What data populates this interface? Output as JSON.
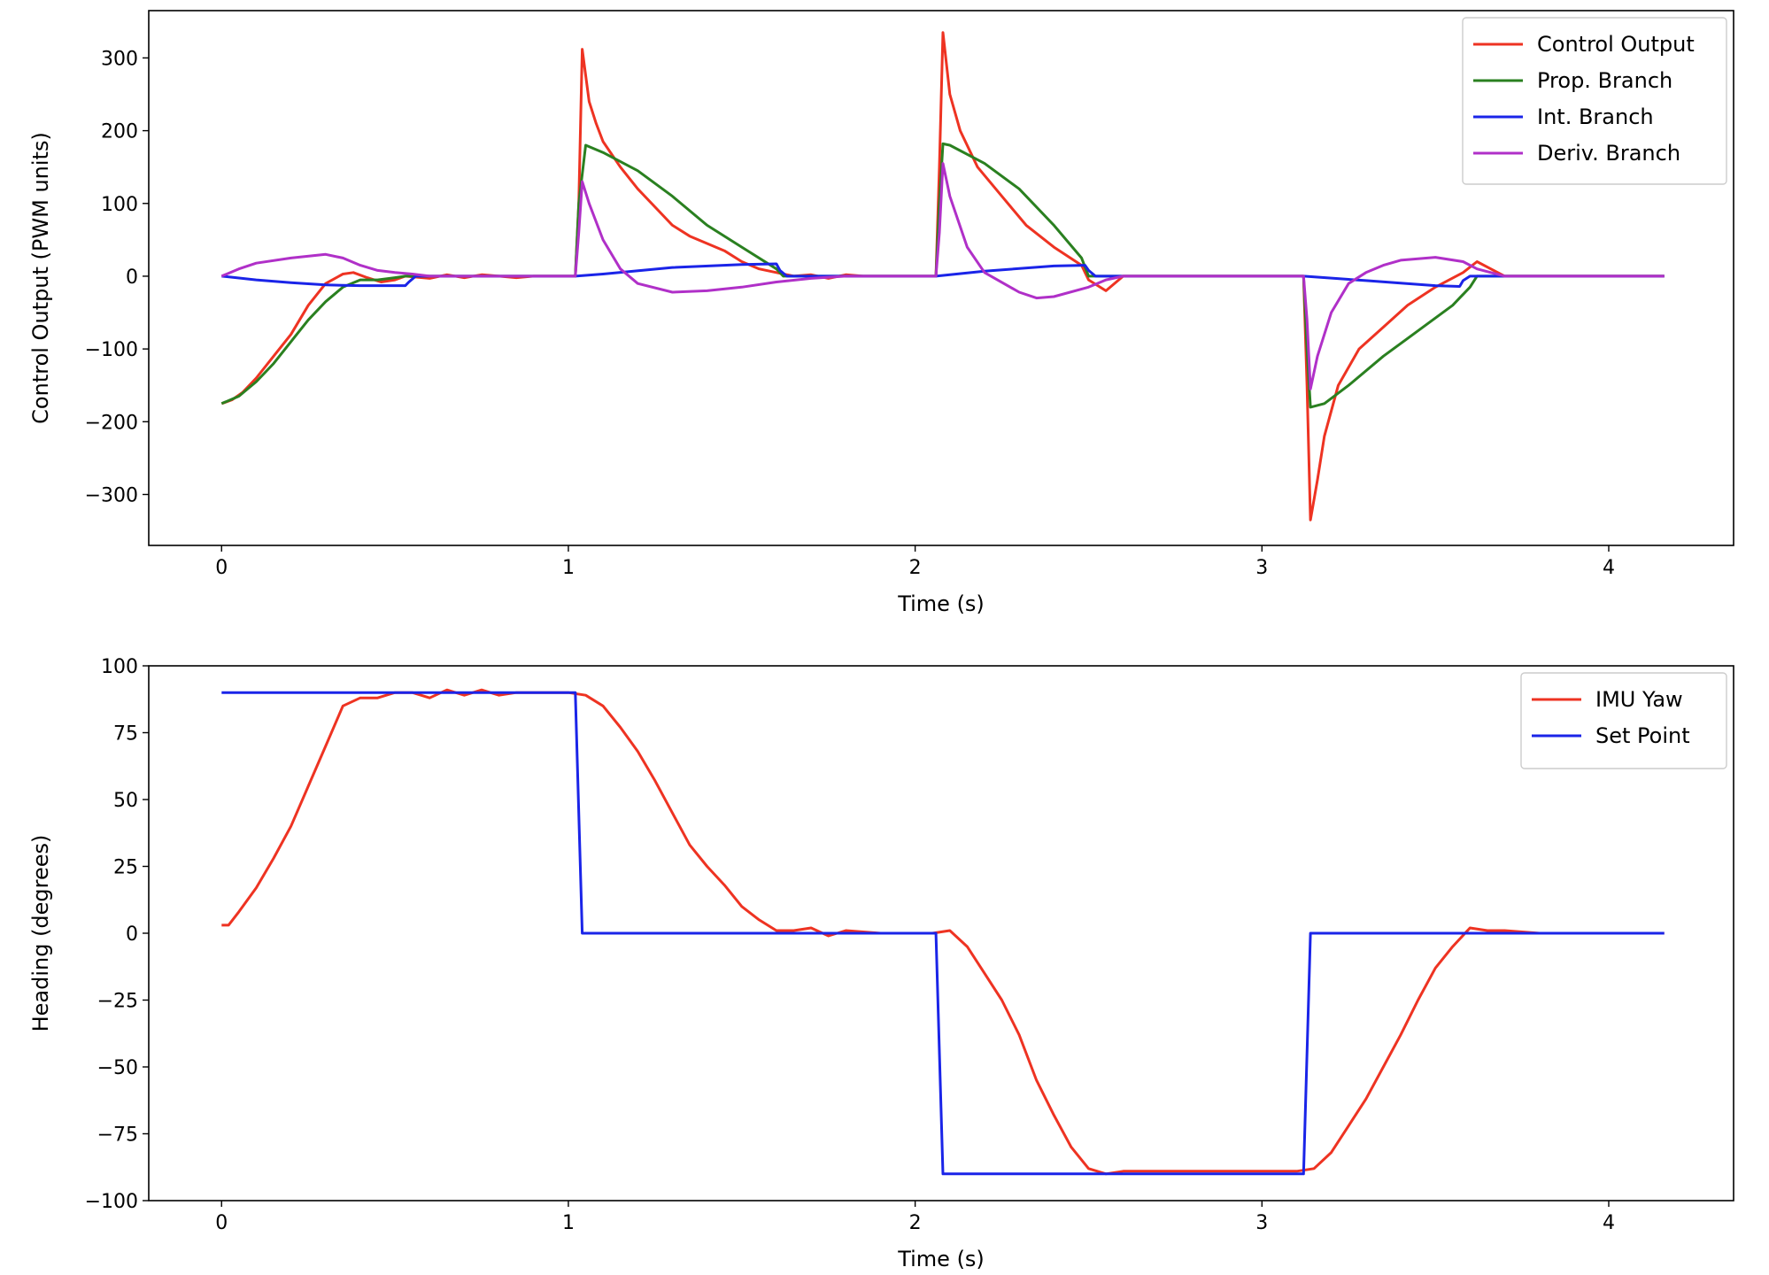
{
  "chart_data": [
    {
      "type": "line",
      "title": "",
      "xlabel": "Time (s)",
      "ylabel": "Control Output (PWM units)",
      "xlim": [
        -0.21,
        4.36
      ],
      "ylim": [
        -370,
        365
      ],
      "xticks": [
        0,
        1,
        2,
        3,
        4
      ],
      "yticks": [
        -300,
        -200,
        -100,
        0,
        100,
        200,
        300
      ],
      "ytick_labels": [
        "−300",
        "−200",
        "−100",
        "0",
        "100",
        "200",
        "300"
      ],
      "grid": false,
      "legend": "top-right",
      "series": [
        {
          "name": "Control Output",
          "color": "#ee3322",
          "x": [
            0,
            0.03,
            0.06,
            0.1,
            0.15,
            0.2,
            0.25,
            0.3,
            0.35,
            0.38,
            0.42,
            0.46,
            0.5,
            0.53,
            0.6,
            0.65,
            0.7,
            0.75,
            0.8,
            0.85,
            0.9,
            0.95,
            1.02,
            1.03,
            1.04,
            1.06,
            1.08,
            1.1,
            1.15,
            1.2,
            1.25,
            1.3,
            1.35,
            1.4,
            1.45,
            1.5,
            1.55,
            1.6,
            1.65,
            1.7,
            1.75,
            1.8,
            1.85,
            1.9,
            2.06,
            2.07,
            2.08,
            2.1,
            2.13,
            2.18,
            2.25,
            2.32,
            2.4,
            2.48,
            2.5,
            2.55,
            2.6,
            2.7,
            2.8,
            2.9,
            3.0,
            3.12,
            3.13,
            3.14,
            3.16,
            3.18,
            3.22,
            3.28,
            3.35,
            3.42,
            3.5,
            3.58,
            3.62,
            3.66,
            3.7,
            3.8,
            3.9,
            4.0,
            4.1,
            4.16
          ],
          "y": [
            -175,
            -170,
            -160,
            -140,
            -110,
            -80,
            -40,
            -10,
            3,
            5,
            -2,
            -8,
            -5,
            0,
            -3,
            2,
            -2,
            2,
            0,
            -2,
            0,
            0,
            0,
            100,
            312,
            240,
            210,
            185,
            150,
            120,
            95,
            70,
            55,
            45,
            35,
            20,
            10,
            5,
            0,
            2,
            -3,
            2,
            0,
            0,
            0,
            150,
            335,
            250,
            200,
            150,
            110,
            70,
            40,
            15,
            -5,
            -20,
            0,
            0,
            0,
            0,
            0,
            0,
            -150,
            -335,
            -280,
            -220,
            -150,
            -100,
            -70,
            -40,
            -15,
            5,
            20,
            10,
            0,
            0,
            0,
            0,
            0,
            0
          ]
        },
        {
          "name": "Prop. Branch",
          "color": "#2a8020",
          "x": [
            0,
            0.05,
            0.1,
            0.15,
            0.2,
            0.25,
            0.3,
            0.35,
            0.4,
            0.45,
            0.5,
            0.53,
            0.6,
            0.7,
            0.8,
            0.9,
            1.02,
            1.03,
            1.05,
            1.1,
            1.2,
            1.3,
            1.4,
            1.5,
            1.6,
            1.62,
            1.7,
            1.8,
            1.9,
            2.06,
            2.07,
            2.08,
            2.1,
            2.2,
            2.3,
            2.4,
            2.48,
            2.5,
            2.6,
            2.8,
            3.0,
            3.12,
            3.13,
            3.14,
            3.18,
            3.25,
            3.35,
            3.45,
            3.55,
            3.6,
            3.62,
            3.7,
            3.8,
            4.0,
            4.16
          ],
          "y": [
            -175,
            -165,
            -145,
            -120,
            -90,
            -60,
            -35,
            -15,
            -5,
            -5,
            -2,
            0,
            0,
            0,
            0,
            0,
            0,
            100,
            180,
            170,
            145,
            110,
            70,
            40,
            10,
            0,
            0,
            0,
            0,
            0,
            100,
            182,
            180,
            155,
            120,
            70,
            25,
            0,
            0,
            0,
            0,
            0,
            -100,
            -180,
            -175,
            -150,
            -110,
            -75,
            -40,
            -15,
            0,
            0,
            0,
            0,
            0
          ]
        },
        {
          "name": "Int. Branch",
          "color": "#1a24e8",
          "x": [
            0,
            0.1,
            0.2,
            0.3,
            0.4,
            0.53,
            0.54,
            0.56,
            0.8,
            1.02,
            1.1,
            1.3,
            1.5,
            1.6,
            1.61,
            1.63,
            2.06,
            2.2,
            2.4,
            2.49,
            2.5,
            2.52,
            3.12,
            3.3,
            3.5,
            3.57,
            3.58,
            3.6,
            4.16
          ],
          "y": [
            0,
            -5,
            -9,
            -12,
            -13,
            -13,
            -8,
            0,
            0,
            0,
            3,
            12,
            16,
            17,
            8,
            0,
            0,
            7,
            14,
            15,
            8,
            0,
            0,
            -6,
            -13,
            -14,
            -6,
            0,
            0
          ]
        },
        {
          "name": "Deriv. Branch",
          "color": "#b030c8",
          "x": [
            0,
            0.05,
            0.1,
            0.2,
            0.3,
            0.35,
            0.4,
            0.45,
            0.5,
            0.55,
            0.6,
            0.7,
            0.8,
            0.9,
            1.02,
            1.03,
            1.04,
            1.06,
            1.1,
            1.15,
            1.2,
            1.3,
            1.4,
            1.5,
            1.6,
            1.7,
            1.8,
            1.9,
            2.06,
            2.07,
            2.08,
            2.1,
            2.15,
            2.2,
            2.3,
            2.35,
            2.4,
            2.5,
            2.55,
            2.6,
            2.8,
            3.0,
            3.12,
            3.13,
            3.14,
            3.16,
            3.2,
            3.25,
            3.3,
            3.35,
            3.4,
            3.5,
            3.58,
            3.62,
            3.7,
            3.8,
            4.0,
            4.16
          ],
          "y": [
            0,
            10,
            18,
            25,
            30,
            25,
            15,
            8,
            5,
            3,
            0,
            0,
            0,
            0,
            0,
            60,
            130,
            100,
            50,
            10,
            -10,
            -22,
            -20,
            -15,
            -8,
            -3,
            0,
            0,
            0,
            60,
            155,
            110,
            40,
            5,
            -22,
            -30,
            -28,
            -15,
            -5,
            0,
            0,
            0,
            0,
            -60,
            -155,
            -110,
            -50,
            -10,
            5,
            15,
            22,
            26,
            20,
            10,
            0,
            0,
            0,
            0
          ]
        }
      ]
    },
    {
      "type": "line",
      "title": "",
      "xlabel": "Time (s)",
      "ylabel": "Heading (degrees)",
      "xlim": [
        -0.21,
        4.36
      ],
      "ylim": [
        -100,
        100
      ],
      "xticks": [
        0,
        1,
        2,
        3,
        4
      ],
      "yticks": [
        -100,
        -75,
        -50,
        -25,
        0,
        25,
        50,
        75,
        100
      ],
      "ytick_labels": [
        "−100",
        "−75",
        "−50",
        "−25",
        "0",
        "25",
        "50",
        "75",
        "100"
      ],
      "grid": false,
      "legend": "top-right",
      "series": [
        {
          "name": "IMU Yaw",
          "color": "#ee3322",
          "x": [
            0,
            0.02,
            0.05,
            0.1,
            0.15,
            0.2,
            0.25,
            0.3,
            0.35,
            0.4,
            0.45,
            0.5,
            0.55,
            0.6,
            0.65,
            0.7,
            0.75,
            0.8,
            0.85,
            0.9,
            0.95,
            1.0,
            1.05,
            1.1,
            1.15,
            1.2,
            1.25,
            1.3,
            1.35,
            1.4,
            1.45,
            1.5,
            1.55,
            1.6,
            1.65,
            1.7,
            1.75,
            1.8,
            1.9,
            2.0,
            2.05,
            2.1,
            2.15,
            2.2,
            2.25,
            2.3,
            2.35,
            2.4,
            2.45,
            2.5,
            2.55,
            2.6,
            2.7,
            2.8,
            2.9,
            3.0,
            3.1,
            3.15,
            3.2,
            3.25,
            3.3,
            3.35,
            3.4,
            3.45,
            3.5,
            3.55,
            3.6,
            3.65,
            3.7,
            3.8,
            4.0,
            4.16
          ],
          "y": [
            3,
            3,
            8,
            17,
            28,
            40,
            55,
            70,
            85,
            88,
            88,
            90,
            90,
            88,
            91,
            89,
            91,
            89,
            90,
            90,
            90,
            90,
            89,
            85,
            77,
            68,
            57,
            45,
            33,
            25,
            18,
            10,
            5,
            1,
            1,
            2,
            -1,
            1,
            0,
            0,
            0,
            1,
            -5,
            -15,
            -25,
            -38,
            -55,
            -68,
            -80,
            -88,
            -90,
            -89,
            -89,
            -89,
            -89,
            -89,
            -89,
            -88,
            -82,
            -72,
            -62,
            -50,
            -38,
            -25,
            -13,
            -5,
            2,
            1,
            1,
            0,
            0,
            0
          ]
        },
        {
          "name": "Set Point",
          "color": "#1a24e8",
          "x": [
            0,
            1.02,
            1.04,
            2.06,
            2.08,
            3.12,
            3.14,
            4.16
          ],
          "y": [
            90,
            90,
            0,
            0,
            -90,
            -90,
            0,
            0
          ]
        }
      ]
    }
  ]
}
